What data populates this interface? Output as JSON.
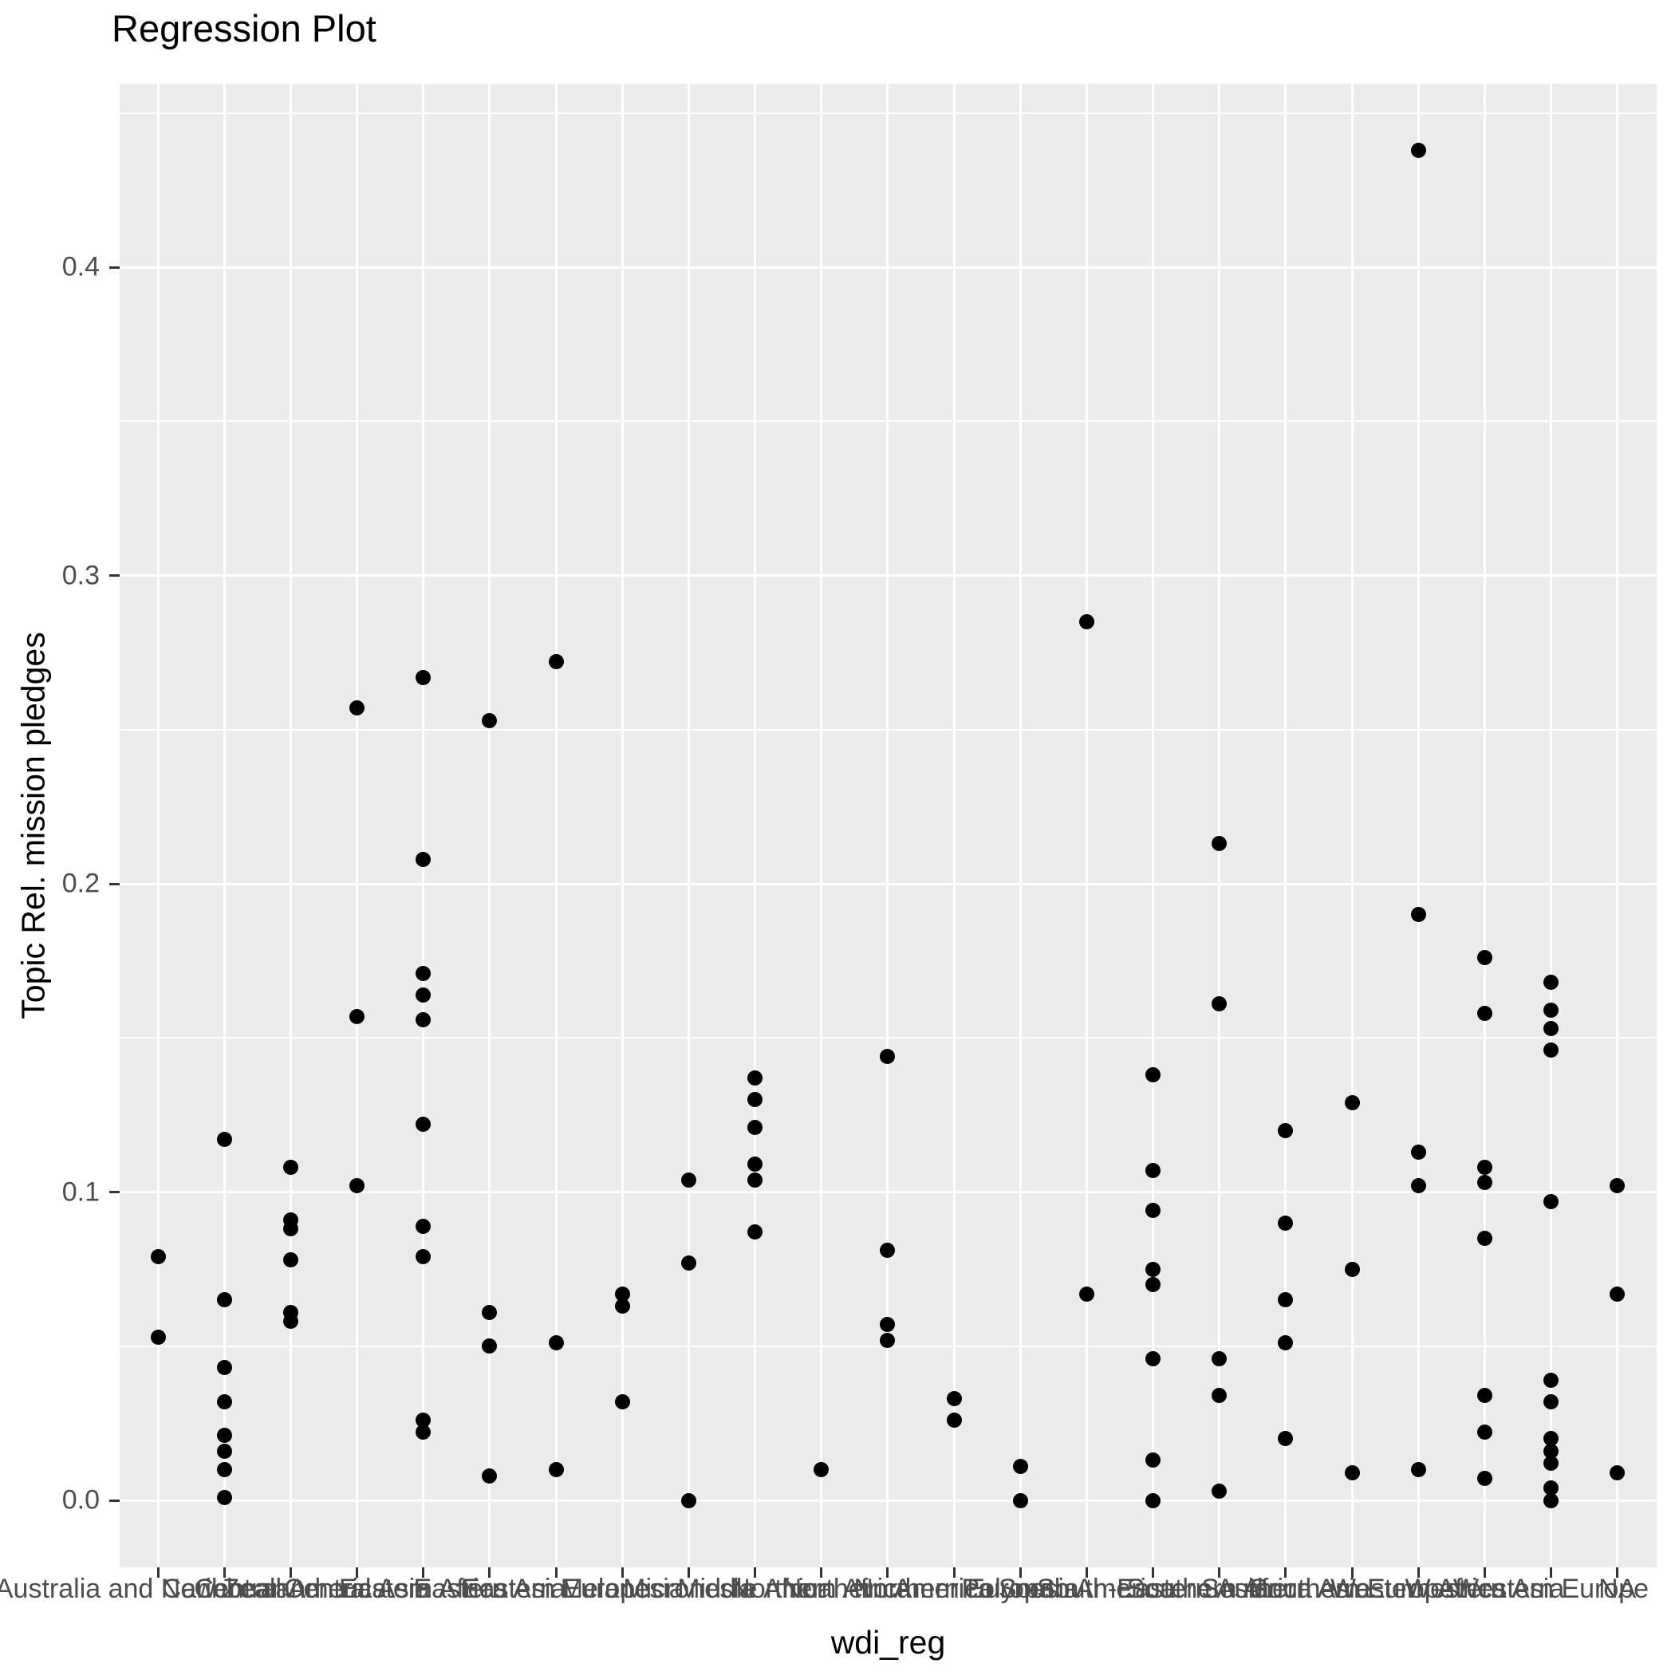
{
  "chart_data": {
    "type": "scatter",
    "title": "Regression Plot",
    "xlabel": "wdi_reg",
    "ylabel": "Topic Rel. mission pledges",
    "x_type": "categorical",
    "categories": [
      "Australia and New Zealand",
      "Caribbean",
      "Central America",
      "Central Asia",
      "Eastern Africa",
      "Eastern Asia",
      "Eastern Europe",
      "Melanesia",
      "Micronesia",
      "Middle Africa",
      "Northern Africa",
      "Northern America",
      "Northern Europe",
      "Polynesia",
      "South America",
      "South-Eastern Asia",
      "Southern Africa",
      "Southern Asia",
      "Southern Europe",
      "Western Africa",
      "Western Asia",
      "Western Europe",
      "NA"
    ],
    "y_ticks": [
      "0.0",
      "0.1",
      "0.2",
      "0.3",
      "0.4"
    ],
    "y_tick_values": [
      0.0,
      0.1,
      0.2,
      0.3,
      0.4
    ],
    "y_minor_values": [
      0.05,
      0.15,
      0.25,
      0.35,
      0.45
    ],
    "ylim": [
      -0.0217,
      0.4595
    ],
    "grid": {
      "major": true,
      "minor": true,
      "color": "#ffffff"
    },
    "legend_position": "none",
    "panel_color": "#EBEBEB",
    "point_color": "#000000",
    "tick_label_color": "#4D4D4D",
    "series": [
      {
        "name": "pledges",
        "points": [
          {
            "xi": 0,
            "y": 0.079
          },
          {
            "xi": 0,
            "y": 0.053
          },
          {
            "xi": 1,
            "y": 0.117
          },
          {
            "xi": 1,
            "y": 0.065
          },
          {
            "xi": 1,
            "y": 0.043
          },
          {
            "xi": 1,
            "y": 0.032
          },
          {
            "xi": 1,
            "y": 0.021
          },
          {
            "xi": 1,
            "y": 0.016
          },
          {
            "xi": 1,
            "y": 0.01
          },
          {
            "xi": 1,
            "y": 0.001
          },
          {
            "xi": 2,
            "y": 0.108
          },
          {
            "xi": 2,
            "y": 0.091
          },
          {
            "xi": 2,
            "y": 0.088
          },
          {
            "xi": 2,
            "y": 0.078
          },
          {
            "xi": 2,
            "y": 0.061
          },
          {
            "xi": 2,
            "y": 0.058
          },
          {
            "xi": 3,
            "y": 0.257
          },
          {
            "xi": 3,
            "y": 0.157
          },
          {
            "xi": 3,
            "y": 0.102
          },
          {
            "xi": 4,
            "y": 0.267
          },
          {
            "xi": 4,
            "y": 0.208
          },
          {
            "xi": 4,
            "y": 0.171
          },
          {
            "xi": 4,
            "y": 0.164
          },
          {
            "xi": 4,
            "y": 0.156
          },
          {
            "xi": 4,
            "y": 0.122
          },
          {
            "xi": 4,
            "y": 0.089
          },
          {
            "xi": 4,
            "y": 0.079
          },
          {
            "xi": 4,
            "y": 0.026
          },
          {
            "xi": 4,
            "y": 0.022
          },
          {
            "xi": 5,
            "y": 0.253
          },
          {
            "xi": 5,
            "y": 0.061
          },
          {
            "xi": 5,
            "y": 0.05
          },
          {
            "xi": 5,
            "y": 0.008
          },
          {
            "xi": 6,
            "y": 0.272
          },
          {
            "xi": 6,
            "y": 0.051
          },
          {
            "xi": 6,
            "y": 0.01
          },
          {
            "xi": 7,
            "y": 0.067
          },
          {
            "xi": 7,
            "y": 0.063
          },
          {
            "xi": 7,
            "y": 0.032
          },
          {
            "xi": 8,
            "y": 0.104
          },
          {
            "xi": 8,
            "y": 0.077
          },
          {
            "xi": 8,
            "y": 0.0
          },
          {
            "xi": 9,
            "y": 0.137
          },
          {
            "xi": 9,
            "y": 0.13
          },
          {
            "xi": 9,
            "y": 0.121
          },
          {
            "xi": 9,
            "y": 0.109
          },
          {
            "xi": 9,
            "y": 0.104
          },
          {
            "xi": 9,
            "y": 0.087
          },
          {
            "xi": 10,
            "y": 0.01
          },
          {
            "xi": 11,
            "y": 0.144
          },
          {
            "xi": 11,
            "y": 0.081
          },
          {
            "xi": 11,
            "y": 0.057
          },
          {
            "xi": 11,
            "y": 0.052
          },
          {
            "xi": 12,
            "y": 0.033
          },
          {
            "xi": 12,
            "y": 0.026
          },
          {
            "xi": 13,
            "y": 0.011
          },
          {
            "xi": 13,
            "y": 0.0
          },
          {
            "xi": 14,
            "y": 0.285
          },
          {
            "xi": 14,
            "y": 0.067
          },
          {
            "xi": 15,
            "y": 0.138
          },
          {
            "xi": 15,
            "y": 0.107
          },
          {
            "xi": 15,
            "y": 0.094
          },
          {
            "xi": 15,
            "y": 0.075
          },
          {
            "xi": 15,
            "y": 0.07
          },
          {
            "xi": 15,
            "y": 0.046
          },
          {
            "xi": 15,
            "y": 0.013
          },
          {
            "xi": 15,
            "y": 0.0
          },
          {
            "xi": 16,
            "y": 0.213
          },
          {
            "xi": 16,
            "y": 0.161
          },
          {
            "xi": 16,
            "y": 0.046
          },
          {
            "xi": 16,
            "y": 0.034
          },
          {
            "xi": 16,
            "y": 0.003
          },
          {
            "xi": 17,
            "y": 0.12
          },
          {
            "xi": 17,
            "y": 0.09
          },
          {
            "xi": 17,
            "y": 0.065
          },
          {
            "xi": 17,
            "y": 0.051
          },
          {
            "xi": 17,
            "y": 0.02
          },
          {
            "xi": 18,
            "y": 0.129
          },
          {
            "xi": 18,
            "y": 0.075
          },
          {
            "xi": 18,
            "y": 0.009
          },
          {
            "xi": 19,
            "y": 0.438
          },
          {
            "xi": 19,
            "y": 0.19
          },
          {
            "xi": 19,
            "y": 0.113
          },
          {
            "xi": 19,
            "y": 0.102
          },
          {
            "xi": 19,
            "y": 0.01
          },
          {
            "xi": 20,
            "y": 0.176
          },
          {
            "xi": 20,
            "y": 0.158
          },
          {
            "xi": 20,
            "y": 0.108
          },
          {
            "xi": 20,
            "y": 0.103
          },
          {
            "xi": 20,
            "y": 0.085
          },
          {
            "xi": 20,
            "y": 0.034
          },
          {
            "xi": 20,
            "y": 0.022
          },
          {
            "xi": 20,
            "y": 0.007
          },
          {
            "xi": 21,
            "y": 0.168
          },
          {
            "xi": 21,
            "y": 0.159
          },
          {
            "xi": 21,
            "y": 0.153
          },
          {
            "xi": 21,
            "y": 0.146
          },
          {
            "xi": 21,
            "y": 0.097
          },
          {
            "xi": 21,
            "y": 0.039
          },
          {
            "xi": 21,
            "y": 0.032
          },
          {
            "xi": 21,
            "y": 0.02
          },
          {
            "xi": 21,
            "y": 0.016
          },
          {
            "xi": 21,
            "y": 0.012
          },
          {
            "xi": 21,
            "y": 0.004
          },
          {
            "xi": 21,
            "y": 0.0
          },
          {
            "xi": 22,
            "y": 0.102
          },
          {
            "xi": 22,
            "y": 0.067
          },
          {
            "xi": 22,
            "y": 0.009
          }
        ]
      }
    ]
  }
}
